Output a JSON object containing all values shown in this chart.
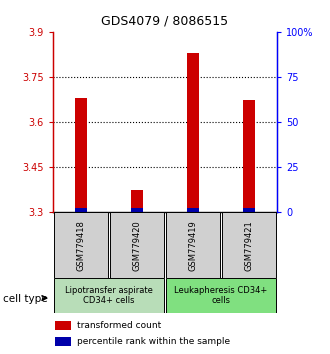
{
  "title": "GDS4079 / 8086515",
  "samples": [
    "GSM779418",
    "GSM779420",
    "GSM779419",
    "GSM779421"
  ],
  "red_values": [
    3.68,
    3.375,
    3.83,
    3.675
  ],
  "blue_values": [
    3.315,
    3.315,
    3.315,
    3.315
  ],
  "y_min": 3.3,
  "y_max": 3.9,
  "y_ticks_left": [
    3.3,
    3.45,
    3.6,
    3.75,
    3.9
  ],
  "y_ticks_right": [
    0,
    25,
    50,
    75,
    100
  ],
  "red_color": "#CC0000",
  "blue_color": "#0000AA",
  "group1_label": "Lipotransfer aspirate\nCD34+ cells",
  "group2_label": "Leukapheresis CD34+\ncells",
  "group1_color": "#b8ddb8",
  "group2_color": "#80e080",
  "cell_type_label": "cell type",
  "legend_red": "transformed count",
  "legend_blue": "percentile rank within the sample",
  "title_fontsize": 9,
  "tick_fontsize": 7,
  "sample_fontsize": 6,
  "group_fontsize": 6,
  "legend_fontsize": 6.5
}
